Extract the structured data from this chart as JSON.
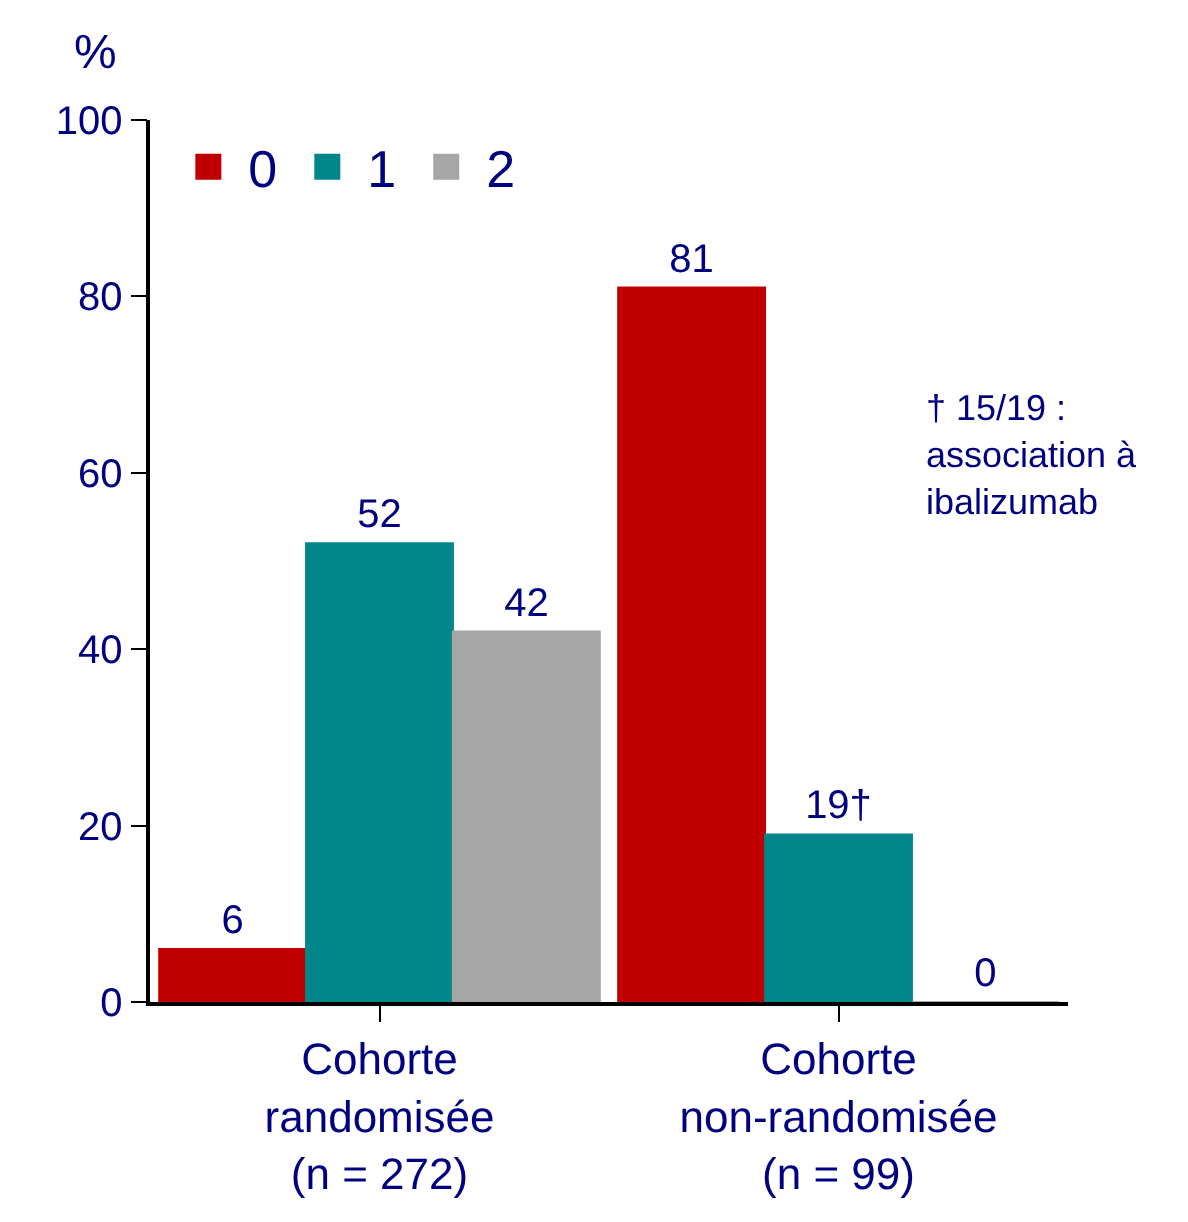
{
  "chart_data": {
    "type": "bar",
    "ylabel": "%",
    "categories": [
      "Cohorte\nrandomisée\n(n = 272)",
      "Cohorte\nnon-randomisée\n(n = 99)"
    ],
    "series": [
      {
        "name": "0",
        "color": "#c00000",
        "values": [
          6,
          81
        ],
        "value_labels": [
          "6",
          "81"
        ]
      },
      {
        "name": "1",
        "color": "#00868b",
        "values": [
          52,
          19
        ],
        "value_labels": [
          "52",
          "19†"
        ]
      },
      {
        "name": "2",
        "color": "#a6a6a6",
        "values": [
          42,
          0
        ],
        "value_labels": [
          "42",
          "0"
        ]
      }
    ],
    "ylim": [
      0,
      100
    ],
    "yticks": [
      0,
      20,
      40,
      60,
      80,
      100
    ],
    "legend": "top left",
    "annotations": [
      "† 15/19 :\nassociation à\nibalizumab"
    ]
  }
}
